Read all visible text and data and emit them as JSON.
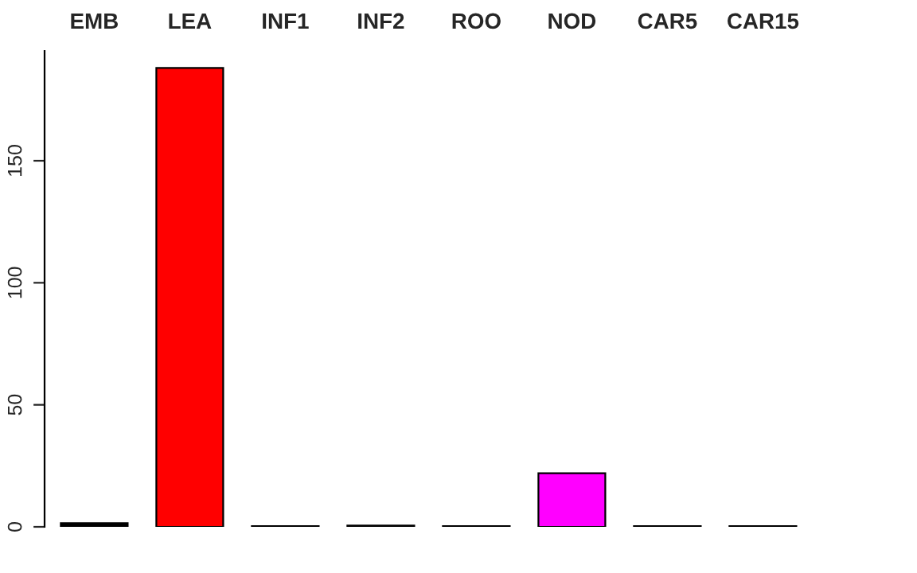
{
  "chart_data": {
    "type": "bar",
    "categories": [
      "EMB",
      "LEA",
      "INF1",
      "INF2",
      "ROO",
      "NOD",
      "CAR5",
      "CAR15"
    ],
    "values": [
      1.5,
      188,
      0.3,
      0.5,
      0.3,
      22,
      0.3,
      0.3
    ],
    "colors": [
      "#000000",
      "#ff0000",
      "#1a661a",
      "#000080",
      "#6b3a3a",
      "#ff00ff",
      "#404040",
      "#404040"
    ],
    "ylim": [
      0,
      195
    ],
    "yticks": [
      0,
      50,
      100,
      150
    ],
    "grid": false,
    "legend": false
  }
}
